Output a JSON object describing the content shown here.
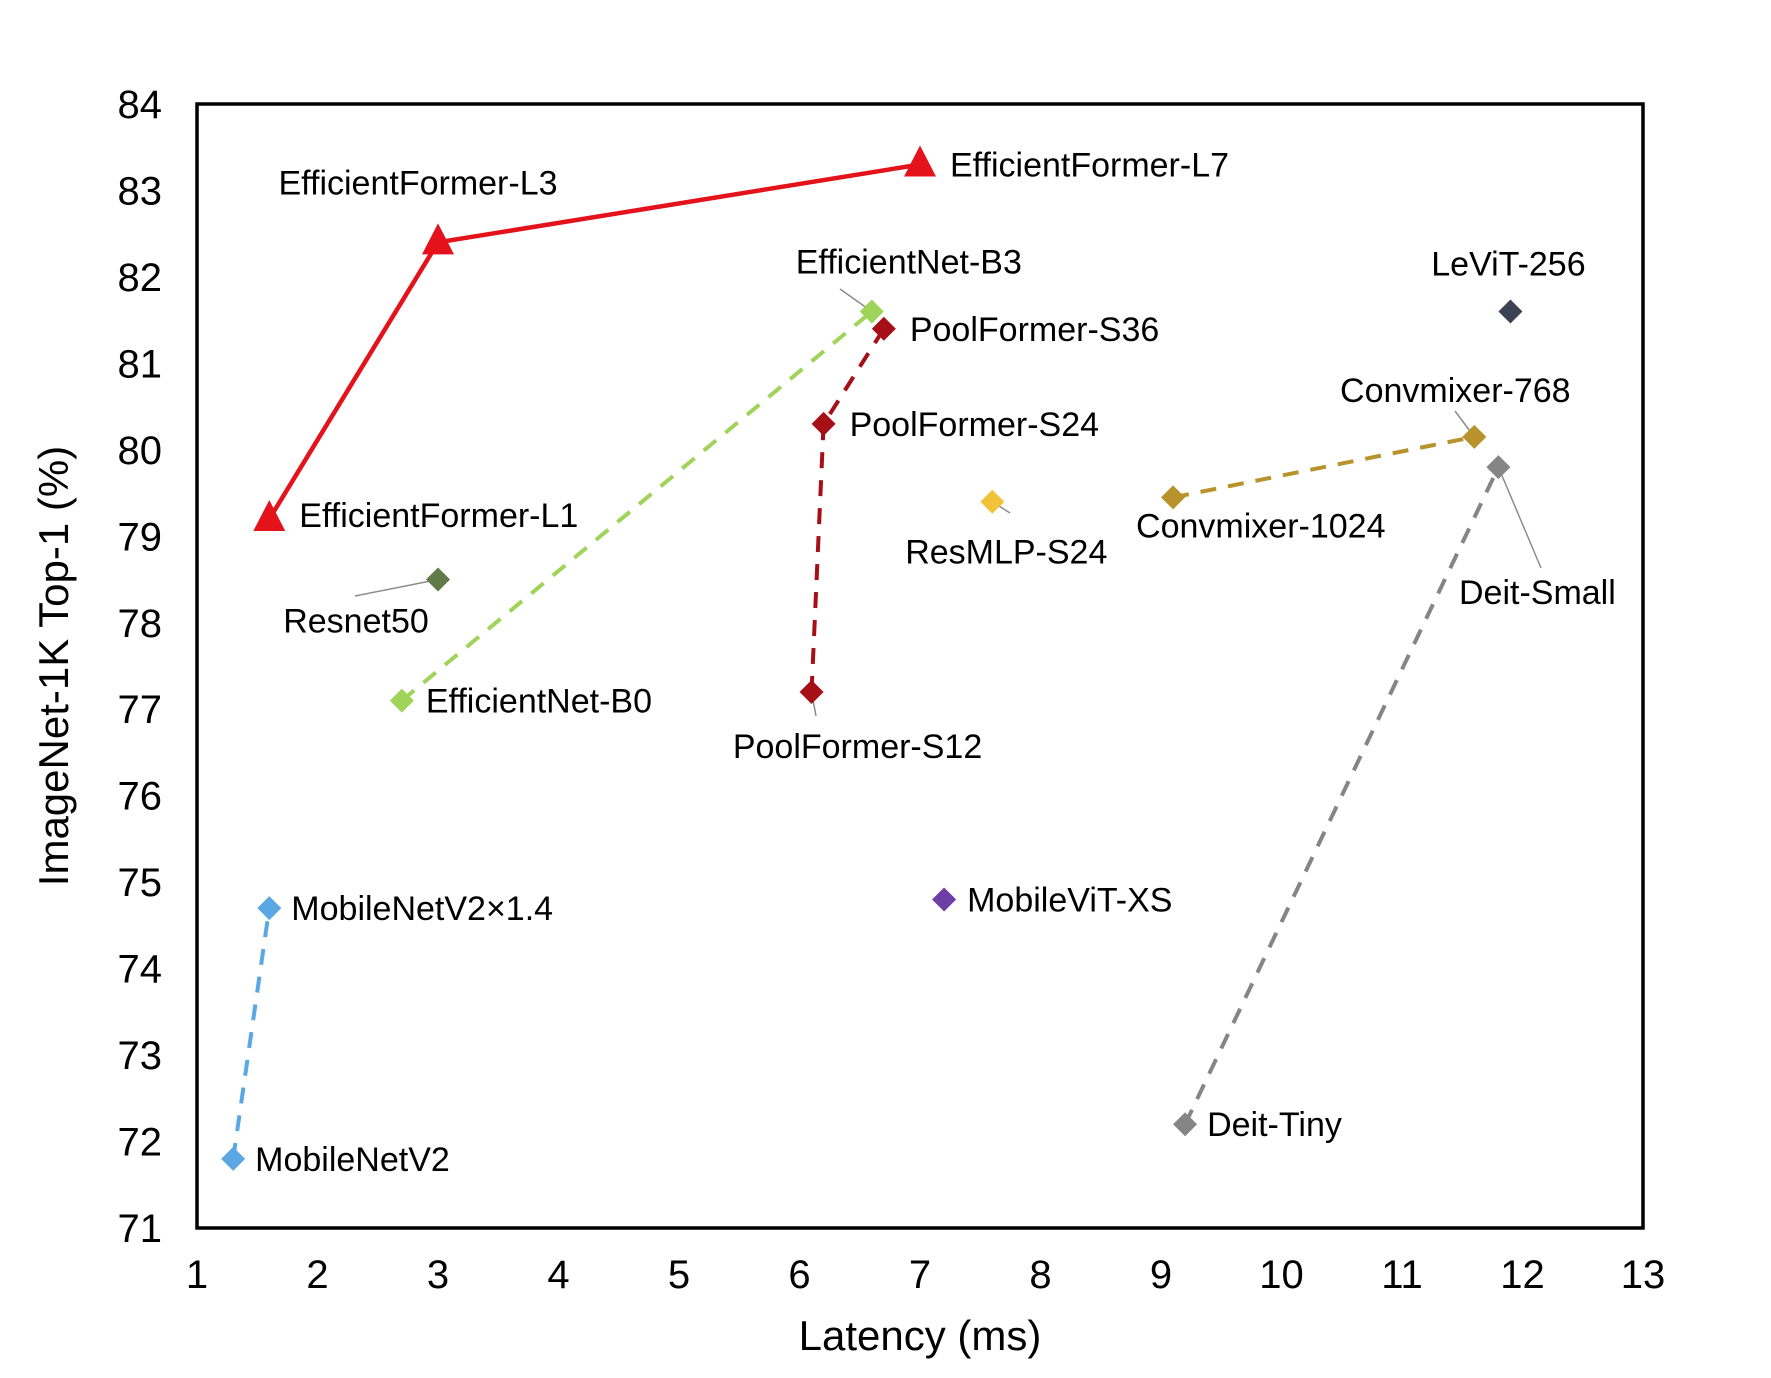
{
  "chart_data": {
    "type": "scatter",
    "title": "",
    "xlabel": "Latency (ms)",
    "ylabel": "ImageNet-1K Top-1 (%)",
    "xlim": [
      1,
      13
    ],
    "ylim": [
      71,
      84
    ],
    "xticks": [
      1,
      2,
      3,
      4,
      5,
      6,
      7,
      8,
      9,
      10,
      11,
      12,
      13
    ],
    "yticks": [
      71,
      72,
      73,
      74,
      75,
      76,
      77,
      78,
      79,
      80,
      81,
      82,
      83,
      84
    ],
    "grid": false,
    "legend": "none",
    "series": [
      {
        "color": "#e3121b",
        "marker": "triangle",
        "line": "solid",
        "points": [
          {
            "label": "EfficientFormer-L1",
            "x": 1.6,
            "y": 79.2
          },
          {
            "label": "EfficientFormer-L3",
            "x": 3.0,
            "y": 82.4
          },
          {
            "label": "EfficientFormer-L7",
            "x": 7.0,
            "y": 83.3
          }
        ]
      },
      {
        "color": "#9fd35a",
        "marker": "diamond",
        "line": "dashed",
        "points": [
          {
            "label": "EfficientNet-B0",
            "x": 2.7,
            "y": 77.1
          },
          {
            "label": "EfficientNet-B3",
            "x": 6.6,
            "y": 81.6
          }
        ]
      },
      {
        "color": "#a50f15",
        "marker": "diamond",
        "line": "dashed",
        "points": [
          {
            "label": "PoolFormer-S12",
            "x": 6.1,
            "y": 77.2
          },
          {
            "label": "PoolFormer-S24",
            "x": 6.2,
            "y": 80.3
          },
          {
            "label": "PoolFormer-S36",
            "x": 6.7,
            "y": 81.4
          }
        ]
      },
      {
        "color": "#5ba7e4",
        "marker": "diamond",
        "line": "dashed",
        "points": [
          {
            "label": "MobileNetV2",
            "x": 1.3,
            "y": 71.8
          },
          {
            "label": "MobileNetV2×1.4",
            "x": 1.6,
            "y": 74.7
          }
        ]
      },
      {
        "color": "#b8932b",
        "marker": "diamond",
        "line": "dashed",
        "points": [
          {
            "label": "Convmixer-1024",
            "x": 9.1,
            "y": 79.45
          },
          {
            "label": "Convmixer-768",
            "x": 11.6,
            "y": 80.15
          }
        ]
      },
      {
        "color": "#858585",
        "marker": "diamond",
        "line": "dashed",
        "points": [
          {
            "label": "Deit-Tiny",
            "x": 9.2,
            "y": 72.2
          },
          {
            "label": "Deit-Small",
            "x": 11.8,
            "y": 79.8
          }
        ]
      },
      {
        "color": "#607b47",
        "marker": "diamond",
        "line": "none",
        "points": [
          {
            "label": "Resnet50",
            "x": 3.0,
            "y": 78.5
          }
        ]
      },
      {
        "color": "#f2c23a",
        "marker": "diamond",
        "line": "none",
        "points": [
          {
            "label": "ResMLP-S24",
            "x": 7.6,
            "y": 79.4
          }
        ]
      },
      {
        "color": "#6e3ea7",
        "marker": "diamond",
        "line": "none",
        "points": [
          {
            "label": "MobileViT-XS",
            "x": 7.2,
            "y": 74.8
          }
        ]
      },
      {
        "color": "#3c4253",
        "marker": "diamond",
        "line": "none",
        "points": [
          {
            "label": "LeViT-256",
            "x": 11.9,
            "y": 81.6
          }
        ]
      }
    ]
  }
}
